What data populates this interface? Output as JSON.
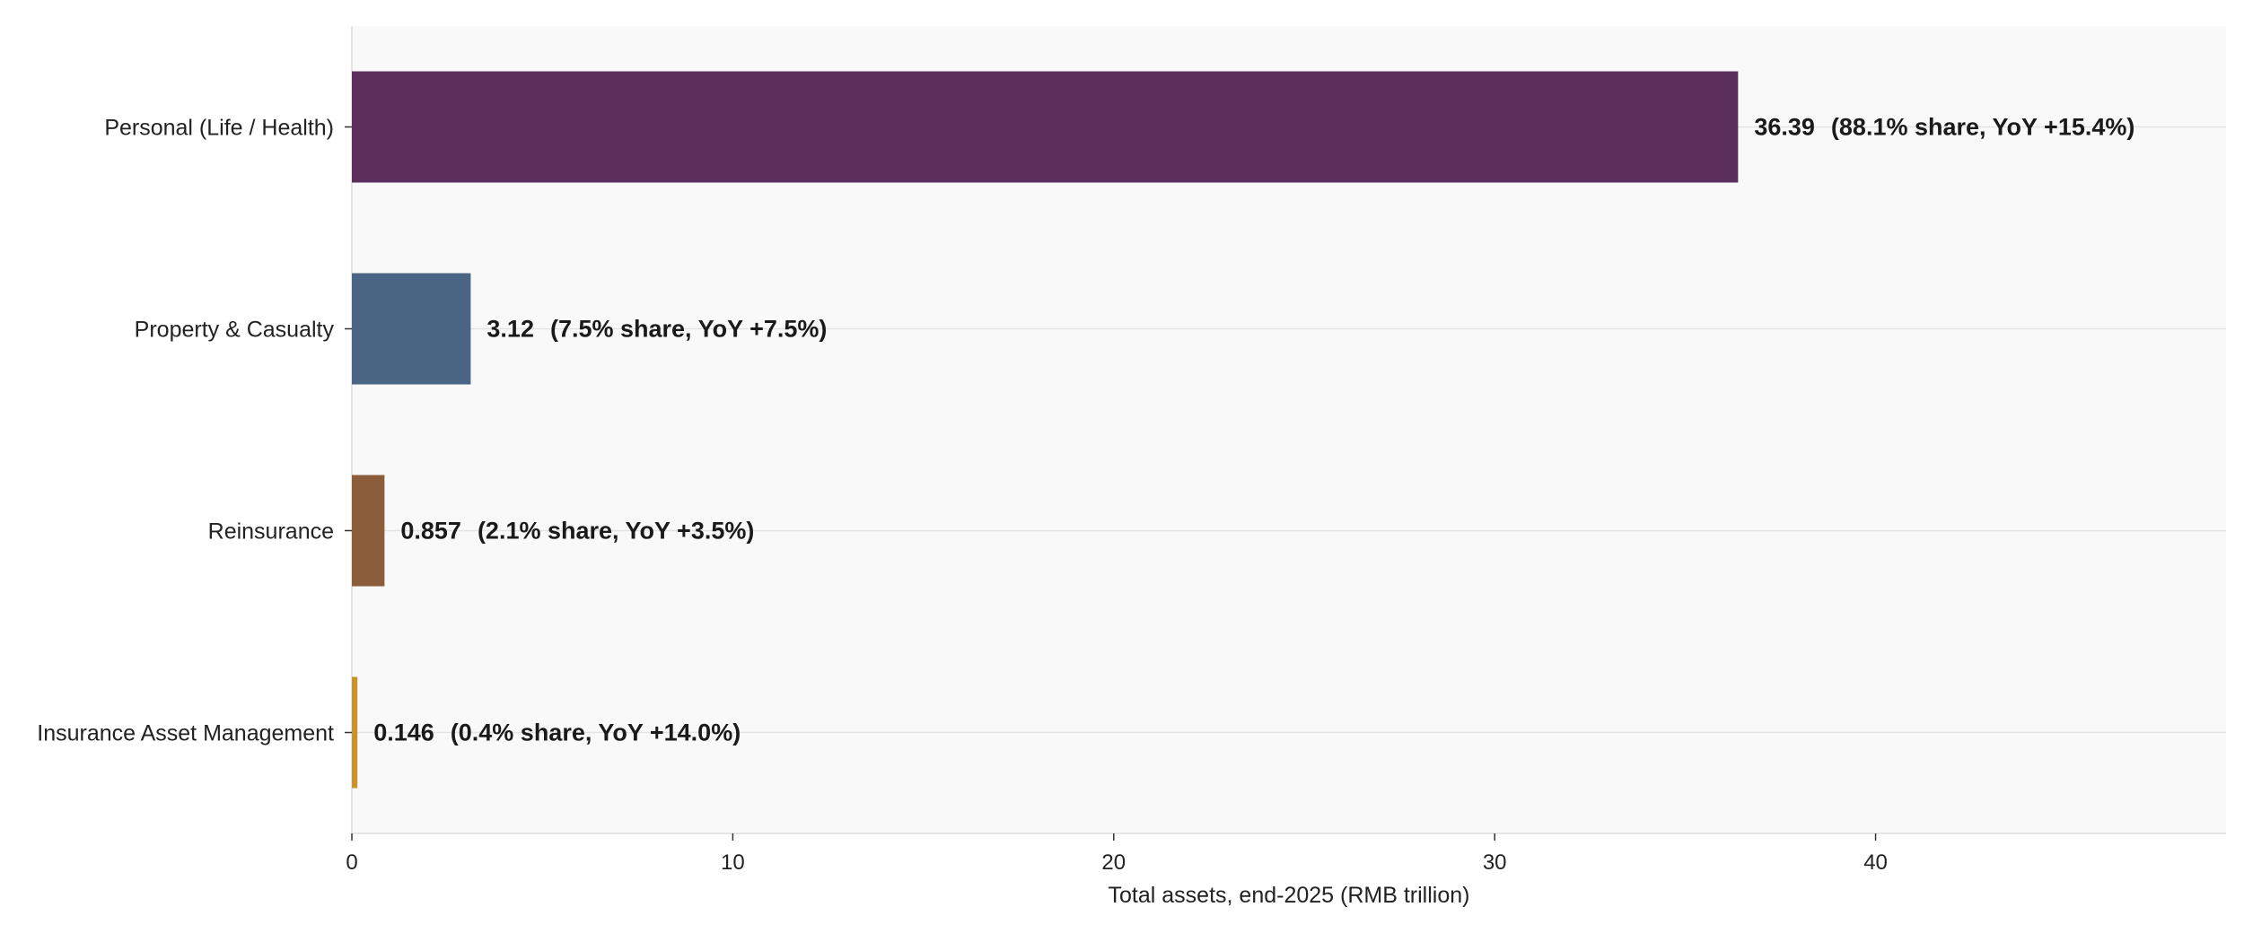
{
  "chart_data": {
    "type": "bar",
    "orientation": "horizontal",
    "categories": [
      "Personal (Life / Health)",
      "Property & Casualty",
      "Reinsurance",
      "Insurance Asset Management"
    ],
    "values": [
      36.39,
      3.12,
      0.857,
      0.146
    ],
    "value_labels": [
      "36.39",
      "3.12",
      "0.857",
      "0.146"
    ],
    "annotations": [
      "(88.1% share, YoY +15.4%)",
      "(7.5% share, YoY +7.5%)",
      "(2.1% share, YoY +3.5%)",
      "(0.4% share, YoY +14.0%)"
    ],
    "colors": [
      "#5c2e5b",
      "#4a6684",
      "#8b5d3a",
      "#c9922e"
    ],
    "xlabel": "Total assets, end-2025 (RMB trillion)",
    "ylabel": "",
    "title": "",
    "xlim": [
      0,
      49.2
    ],
    "xticks": [
      0,
      10,
      20,
      30,
      40
    ],
    "grid": "horizontal lines at categories",
    "legend": "none"
  }
}
